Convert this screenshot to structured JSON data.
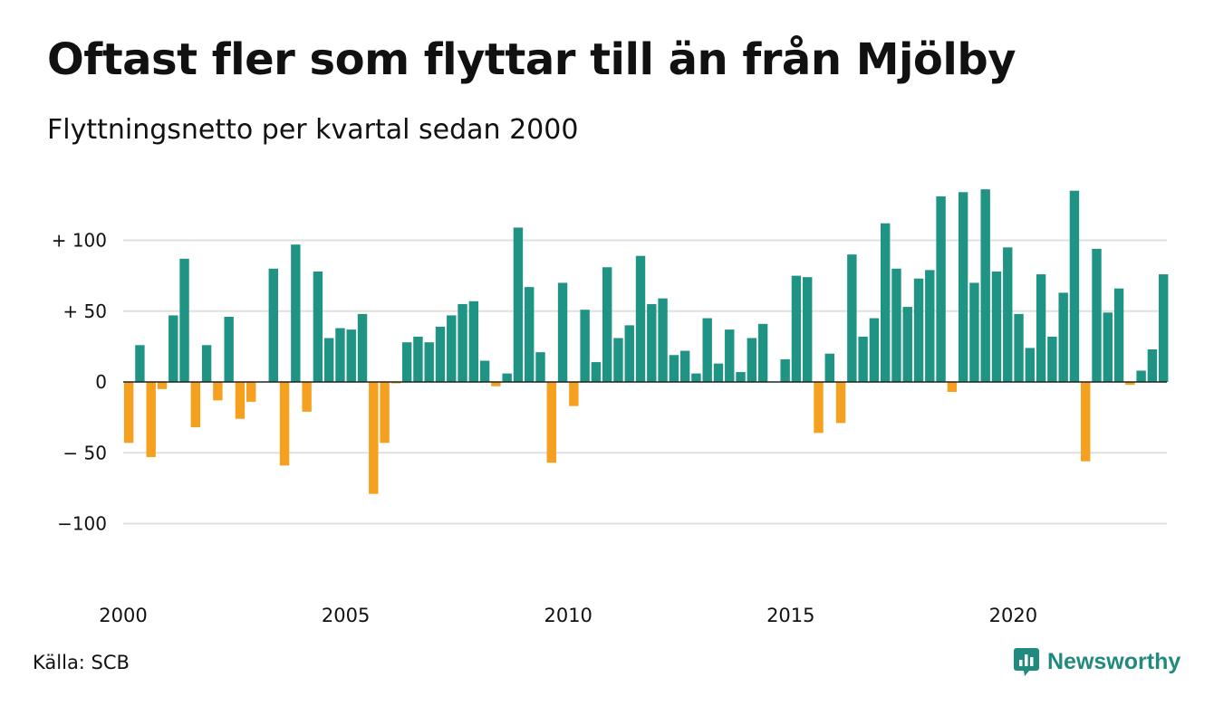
{
  "title": "Oftast fler som flyttar till än från Mjölby",
  "subtitle": "Flyttningsnetto per kvartal sedan 2000",
  "source": "Källa: SCB",
  "brand": {
    "name": "Newsworthy",
    "icon": "newsworthy-logo-icon"
  },
  "colors": {
    "positive": "#1f9484",
    "negative": "#f5a01f",
    "grid": "#e0e0e0",
    "baseline": "#222222",
    "brand": "#1f8a7d"
  },
  "chart_data": {
    "type": "bar",
    "xlabel": "",
    "ylabel": "",
    "ylim": [
      -140,
      140
    ],
    "grid": true,
    "y_ticks": [
      {
        "value": 100,
        "label": "+ 100"
      },
      {
        "value": 50,
        "label": "+  50"
      },
      {
        "value": 0,
        "label": "0"
      },
      {
        "value": -50,
        "label": "− 50"
      },
      {
        "value": -100,
        "label": "−100"
      }
    ],
    "x_ticks": [
      {
        "year": 2000,
        "label": "2000"
      },
      {
        "year": 2005,
        "label": "2005"
      },
      {
        "year": 2010,
        "label": "2010"
      },
      {
        "year": 2015,
        "label": "2015"
      },
      {
        "year": 2020,
        "label": "2020"
      }
    ],
    "start_year": 2000,
    "values": [
      -43,
      26,
      -53,
      -5,
      47,
      87,
      -32,
      26,
      -13,
      46,
      -26,
      -14,
      0,
      80,
      -59,
      97,
      -21,
      78,
      31,
      38,
      37,
      48,
      -79,
      -43,
      -1,
      28,
      32,
      28,
      39,
      47,
      55,
      57,
      15,
      -3,
      6,
      109,
      67,
      21,
      -57,
      70,
      -17,
      51,
      14,
      81,
      31,
      40,
      89,
      55,
      59,
      19,
      22,
      6,
      45,
      13,
      37,
      7,
      31,
      41,
      0,
      16,
      75,
      74,
      -36,
      20,
      -29,
      90,
      32,
      45,
      112,
      80,
      53,
      73,
      79,
      131,
      -7,
      134,
      70,
      136,
      78,
      95,
      48,
      24,
      76,
      32,
      63,
      135,
      -56,
      94,
      49,
      66,
      -2,
      8,
      23,
      76
    ]
  }
}
